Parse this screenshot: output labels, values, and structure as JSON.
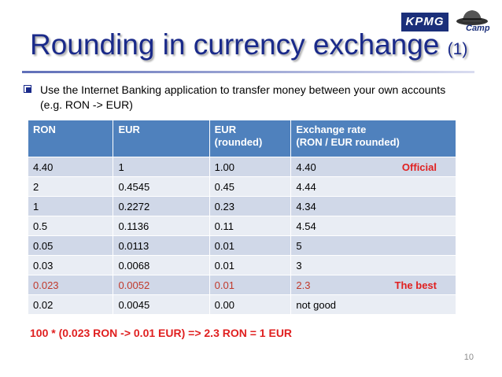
{
  "slide": {
    "title_main": "Rounding in currency exchange",
    "title_sub": "(1)",
    "bullet": "Use the Internet Banking application to transfer money between your own accounts (e.g. RON -> EUR)",
    "logo_kpmg": "KPMG",
    "logo_camp": "Camp",
    "formula": "100 * (0.023 RON -> 0.01 EUR)  =>   2.3 RON = 1 EUR",
    "page_number": "10"
  },
  "table": {
    "headers": [
      "RON",
      "EUR",
      "EUR\n(rounded)",
      "Exchange rate\n(RON / EUR rounded)"
    ],
    "rows": [
      {
        "ron": "4.40",
        "eur": "1",
        "eur_rounded": "1.00",
        "rate": "4.40",
        "note": "Official"
      },
      {
        "ron": "2",
        "eur": "0.4545",
        "eur_rounded": "0.45",
        "rate": "4.44",
        "note": ""
      },
      {
        "ron": "1",
        "eur": "0.2272",
        "eur_rounded": "0.23",
        "rate": "4.34",
        "note": ""
      },
      {
        "ron": "0.5",
        "eur": "0.1136",
        "eur_rounded": "0.11",
        "rate": "4.54",
        "note": ""
      },
      {
        "ron": "0.05",
        "eur": "0.0113",
        "eur_rounded": "0.01",
        "rate": "5",
        "note": ""
      },
      {
        "ron": "0.03",
        "eur": "0.0068",
        "eur_rounded": "0.01",
        "rate": "3",
        "note": ""
      },
      {
        "ron": "0.023",
        "eur": "0.0052",
        "eur_rounded": "0.01",
        "rate": "2.3",
        "note": "The best"
      },
      {
        "ron": "0.02",
        "eur": "0.0045",
        "eur_rounded": "0.00",
        "rate": "not good",
        "note": ""
      }
    ]
  },
  "colors": {
    "title": "#1a2a8a",
    "header_bg": "#4f81bd",
    "row_odd": "#d0d8e8",
    "row_even": "#e9edf4",
    "accent_red": "#e02020"
  }
}
